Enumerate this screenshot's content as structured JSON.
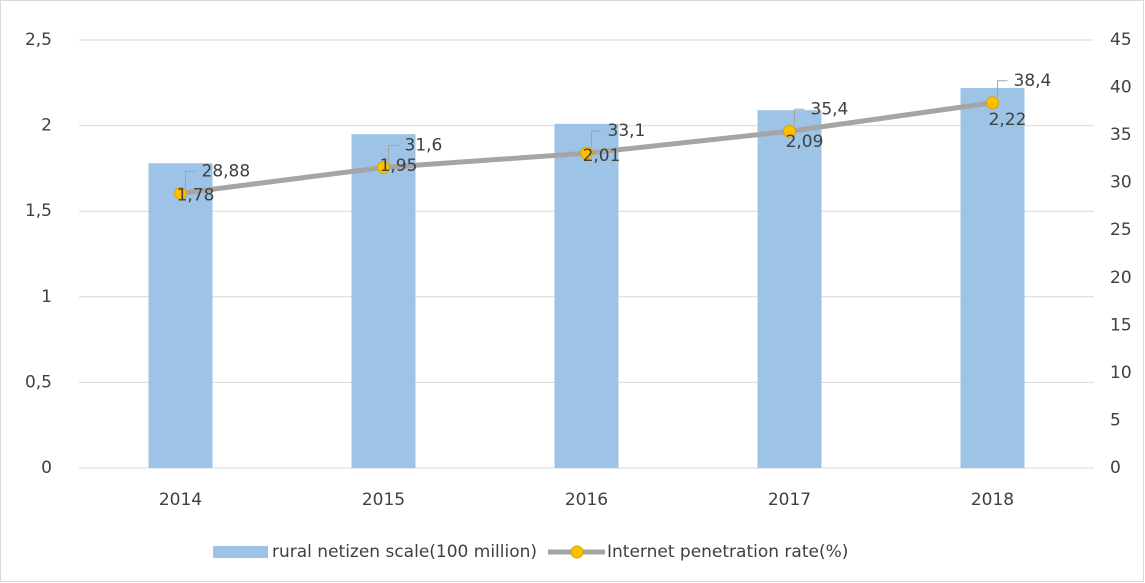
{
  "chart_data": {
    "type": "bar",
    "categories": [
      "2014",
      "2015",
      "2016",
      "2017",
      "2018"
    ],
    "series": [
      {
        "name": "rural netizen scale(100 million)",
        "type": "bar",
        "color": "#9dc3e6",
        "values": [
          1.78,
          1.95,
          2.01,
          2.09,
          2.22
        ],
        "value_labels": [
          "1,78",
          "1,95",
          "2,01",
          "2,09",
          "2,22"
        ]
      },
      {
        "name": "Internet penetration rate(%)",
        "type": "line",
        "axis": "y2",
        "color": "#a5a5a5",
        "marker_color": "#ffc000",
        "values": [
          28.88,
          31.6,
          33.1,
          35.4,
          38.4
        ],
        "value_labels": [
          "28,88",
          "31,6",
          "33,1",
          "35,4",
          "38,4"
        ]
      }
    ],
    "ylim": [
      0,
      2.5
    ],
    "yticks": [
      0,
      {
        "value": 0.5,
        "label": "0,5"
      },
      1,
      {
        "value": 1.5,
        "label": "1,5"
      },
      2,
      {
        "value": 2.5,
        "label": "2,5"
      }
    ],
    "y2lim": [
      0,
      45
    ],
    "y2ticks": [
      0,
      5,
      10,
      15,
      20,
      25,
      30,
      35,
      40,
      45
    ],
    "grid": true,
    "legend": "bottom"
  }
}
